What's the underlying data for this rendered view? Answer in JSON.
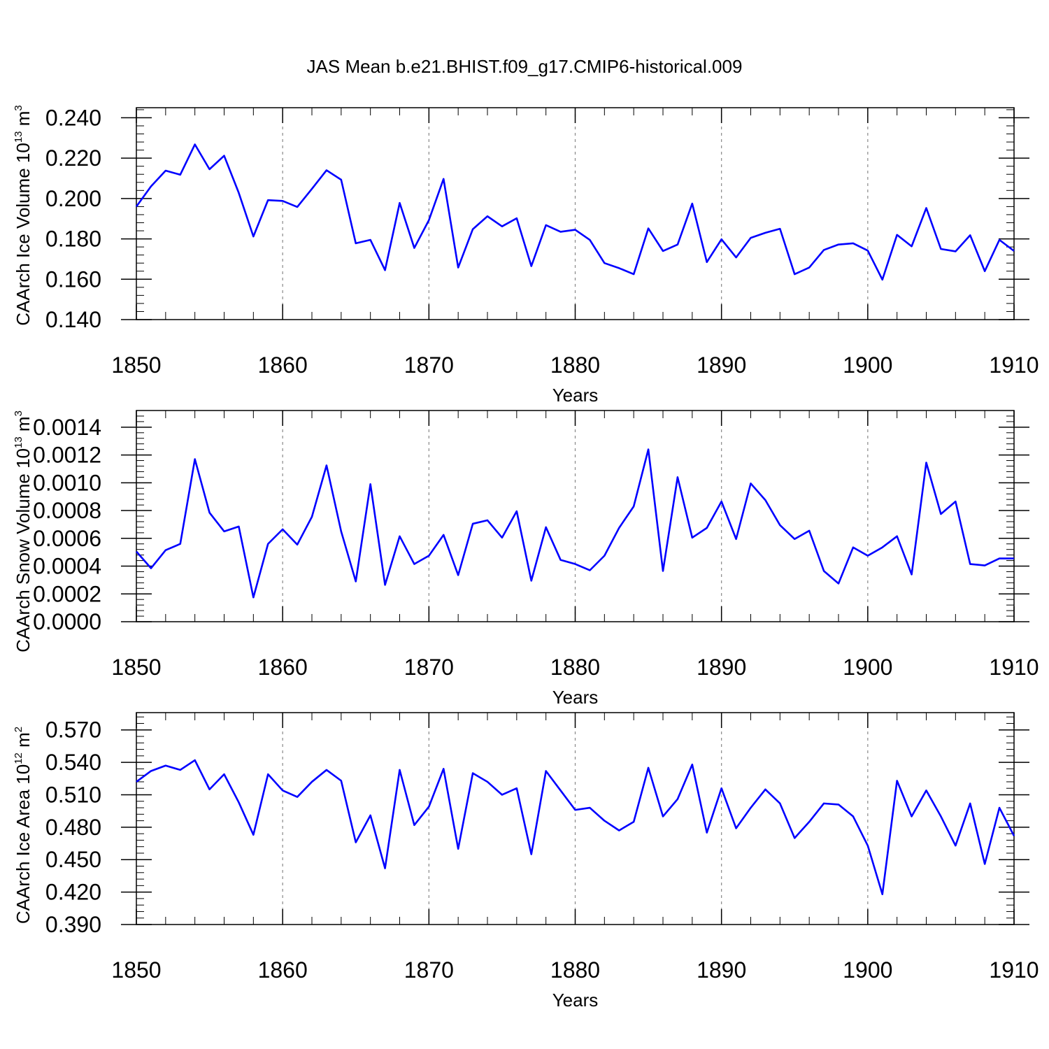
{
  "title": "JAS Mean b.e21.BHIST.f09_g17.CMIP6-historical.009",
  "colors": {
    "line": "#0000ff",
    "axis": "#000000",
    "grid": "#888888",
    "background": "#ffffff"
  },
  "chart_data": [
    {
      "type": "line",
      "title": "JAS Mean b.e21.BHIST.f09_g17.CMIP6-historical.009",
      "xlabel": "Years",
      "ylabel": {
        "text": "CAArch Ice Volume 10",
        "exp": "13",
        "unit": " m",
        "unit_exp": "3"
      },
      "xlim": [
        1850,
        1910
      ],
      "ylim": [
        0.14,
        0.245
      ],
      "x_ticks": [
        1850,
        1860,
        1870,
        1880,
        1890,
        1900,
        1910
      ],
      "x_tick_labels": [
        "1850",
        "1860",
        "1870",
        "1880",
        "1890",
        "1900",
        "1910"
      ],
      "y_ticks": [
        0.14,
        0.16,
        0.18,
        0.2,
        0.22,
        0.24
      ],
      "y_tick_labels": [
        "0.140",
        "0.160",
        "0.180",
        "0.200",
        "0.220",
        "0.240"
      ],
      "grid": "vertical dashed at decades",
      "series": [
        {
          "name": "CAArch Ice Volume",
          "x_start": 1850,
          "values": [
            0.196,
            0.206,
            0.2138,
            0.2118,
            0.2268,
            0.2145,
            0.2212,
            0.2028,
            0.1812,
            0.1992,
            0.1988,
            0.1958,
            0.2048,
            0.214,
            0.2093,
            0.1778,
            0.1795,
            0.1645,
            0.1978,
            0.1755,
            0.1893,
            0.2097,
            0.1658,
            0.1848,
            0.1912,
            0.1862,
            0.1902,
            0.1665,
            0.1868,
            0.1835,
            0.1845,
            0.1795,
            0.168,
            0.1655,
            0.1625,
            0.1852,
            0.174,
            0.1772,
            0.1975,
            0.1685,
            0.1798,
            0.1708,
            0.1805,
            0.183,
            0.185,
            0.1625,
            0.1658,
            0.1745,
            0.1772,
            0.1778,
            0.1742,
            0.1598,
            0.182,
            0.1763,
            0.1953,
            0.175,
            0.1738,
            0.1818,
            0.164,
            0.1795,
            0.174
          ]
        }
      ]
    },
    {
      "type": "line",
      "xlabel": "Years",
      "ylabel": {
        "text": "CAArch Snow Volume 10",
        "exp": "13",
        "unit": " m",
        "unit_exp": "3"
      },
      "xlim": [
        1850,
        1910
      ],
      "ylim": [
        0.0,
        0.00152
      ],
      "x_ticks": [
        1850,
        1860,
        1870,
        1880,
        1890,
        1900,
        1910
      ],
      "x_tick_labels": [
        "1850",
        "1860",
        "1870",
        "1880",
        "1890",
        "1900",
        "1910"
      ],
      "y_ticks": [
        0.0,
        0.0002,
        0.0004,
        0.0006,
        0.0008,
        0.001,
        0.0012,
        0.0014
      ],
      "y_tick_labels": [
        "0.0000",
        "0.0002",
        "0.0004",
        "0.0006",
        "0.0008",
        "0.0010",
        "0.0012",
        "0.0014"
      ],
      "grid": "vertical dashed at decades",
      "series": [
        {
          "name": "CAArch Snow Volume",
          "x_start": 1850,
          "values": [
            0.000505,
            0.000385,
            0.000515,
            0.00056,
            0.00117,
            0.000785,
            0.00065,
            0.000685,
            0.000175,
            0.00056,
            0.000665,
            0.000555,
            0.000755,
            0.001125,
            0.00065,
            0.00029,
            0.00099,
            0.000265,
            0.000615,
            0.000415,
            0.000475,
            0.000625,
            0.000335,
            0.000705,
            0.00073,
            0.000605,
            0.000795,
            0.000295,
            0.00068,
            0.000445,
            0.000415,
            0.00037,
            0.000475,
            0.000675,
            0.00083,
            0.00124,
            0.000365,
            0.00104,
            0.000605,
            0.000675,
            0.000865,
            0.000595,
            0.000995,
            0.000875,
            0.000695,
            0.000595,
            0.000655,
            0.000365,
            0.000275,
            0.000535,
            0.000475,
            0.000535,
            0.000615,
            0.00034,
            0.001145,
            0.000775,
            0.000865,
            0.000415,
            0.000405,
            0.000455,
            0.000455
          ]
        }
      ]
    },
    {
      "type": "line",
      "xlabel": "Years",
      "ylabel": {
        "text": "CAArch Ice Area 10",
        "exp": "12",
        "unit": " m",
        "unit_exp": "2"
      },
      "xlim": [
        1850,
        1910
      ],
      "ylim": [
        0.39,
        0.586
      ],
      "x_ticks": [
        1850,
        1860,
        1870,
        1880,
        1890,
        1900,
        1910
      ],
      "x_tick_labels": [
        "1850",
        "1860",
        "1870",
        "1880",
        "1890",
        "1900",
        "1910"
      ],
      "y_ticks": [
        0.39,
        0.42,
        0.45,
        0.48,
        0.51,
        0.54,
        0.57
      ],
      "y_tick_labels": [
        "0.390",
        "0.420",
        "0.450",
        "0.480",
        "0.510",
        "0.540",
        "0.570"
      ],
      "grid": "vertical dashed at decades",
      "series": [
        {
          "name": "CAArch Ice Area",
          "x_start": 1850,
          "values": [
            0.522,
            0.532,
            0.537,
            0.533,
            0.542,
            0.515,
            0.529,
            0.503,
            0.473,
            0.529,
            0.514,
            0.508,
            0.522,
            0.533,
            0.523,
            0.466,
            0.491,
            0.442,
            0.533,
            0.482,
            0.499,
            0.534,
            0.46,
            0.53,
            0.522,
            0.51,
            0.516,
            0.455,
            0.532,
            0.514,
            0.496,
            0.498,
            0.486,
            0.477,
            0.485,
            0.535,
            0.49,
            0.506,
            0.538,
            0.475,
            0.516,
            0.479,
            0.498,
            0.515,
            0.502,
            0.47,
            0.485,
            0.502,
            0.501,
            0.49,
            0.463,
            0.418,
            0.523,
            0.49,
            0.514,
            0.49,
            0.463,
            0.502,
            0.446,
            0.498,
            0.472
          ]
        }
      ]
    }
  ]
}
